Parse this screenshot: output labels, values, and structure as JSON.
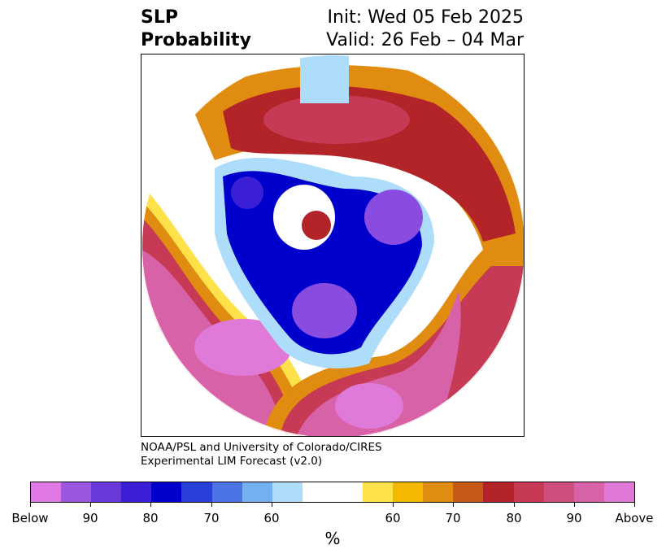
{
  "header": {
    "variable": "SLP",
    "subtitle": "Probability",
    "init": "Init: Wed 05 Feb 2025",
    "valid": "Valid: 26 Feb – 04 Mar"
  },
  "credit": {
    "line1": "NOAA/PSL and University of Colorado/CIRES",
    "line2": "Experimental LIM Forecast (v2.0)"
  },
  "colorbar": {
    "units": "%",
    "tick_labels": [
      "Below",
      "90",
      "80",
      "70",
      "60",
      "60",
      "70",
      "80",
      "90",
      "Above"
    ],
    "colors": [
      "#e079e6",
      "#9b57e2",
      "#6a39dc",
      "#3a1fd6",
      "#0000cc",
      "#2840d8",
      "#4c74e6",
      "#72b0f2",
      "#aedcfb",
      "#ffffff",
      "#ffe24a",
      "#f5b800",
      "#e08c10",
      "#c85a18",
      "#b22428",
      "#c63a56",
      "#cf4e80",
      "#d862a8",
      "#e078d8"
    ]
  },
  "map": {
    "projection": "north-polar-stereographic",
    "colors": {
      "pink": "#d862a8",
      "magenta": "#e07ad8",
      "red": "#b22428",
      "rose": "#c63a56",
      "orange": "#e08c10",
      "yellow": "#ffe24a",
      "blue": "#0000cc",
      "purple": "#8a4be0",
      "lightblue": "#aedcfb"
    }
  }
}
